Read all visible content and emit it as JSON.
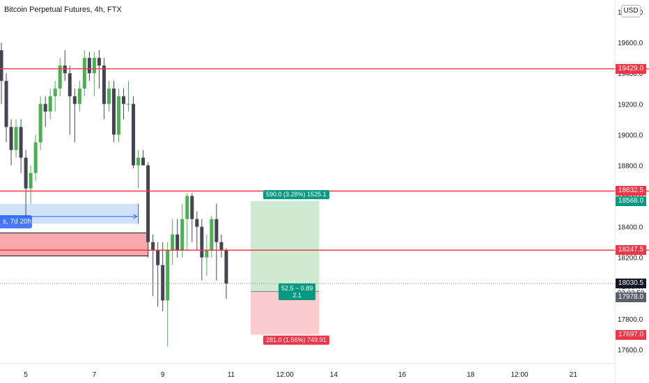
{
  "header": {
    "title": "Bitcoin Perpetual Futures, 4h, FTX"
  },
  "currency_badge": "USD",
  "chart_data": {
    "type": "candlestick",
    "title": "Bitcoin Perpetual Futures, 4h, FTX",
    "y_range": [
      17520,
      19870
    ],
    "y_ticks": [
      17600,
      17800,
      18000,
      18200,
      18400,
      18600,
      18800,
      19000,
      19200,
      19400,
      19600,
      19800
    ],
    "y_tick_labels": [
      "17600.0",
      "17800.0",
      "18000.0",
      "18200.0",
      "18400.0",
      "18600.0",
      "18800.0",
      "19000.0",
      "19200.0",
      "19400.0",
      "19600.0",
      "19800.0"
    ],
    "x_ticks": [
      {
        "label": "5",
        "bar": 5
      },
      {
        "label": "7",
        "bar": 19
      },
      {
        "label": "9",
        "bar": 33
      },
      {
        "label": "11",
        "bar": 47
      },
      {
        "label": "12:00",
        "bar": 58
      },
      {
        "label": "14",
        "bar": 68
      },
      {
        "label": "16",
        "bar": 82
      },
      {
        "label": "18",
        "bar": 96
      },
      {
        "label": "12:00",
        "bar": 106
      },
      {
        "label": "21",
        "bar": 117
      }
    ],
    "candles": [
      [
        19550,
        19600,
        19200,
        19350
      ],
      [
        19350,
        19400,
        18950,
        19050
      ],
      [
        19050,
        19100,
        18800,
        18900
      ],
      [
        18900,
        19100,
        18850,
        19050
      ],
      [
        19050,
        19100,
        18750,
        18850
      ],
      [
        18850,
        18900,
        18450,
        18650
      ],
      [
        18650,
        18800,
        18550,
        18750
      ],
      [
        18750,
        19000,
        18700,
        18950
      ],
      [
        18950,
        19250,
        18900,
        19200
      ],
      [
        19200,
        19250,
        19050,
        19150
      ],
      [
        19150,
        19300,
        19100,
        19250
      ],
      [
        19250,
        19350,
        19150,
        19300
      ],
      [
        19300,
        19500,
        19250,
        19450
      ],
      [
        19450,
        19550,
        19350,
        19400
      ],
      [
        19400,
        19450,
        19000,
        19250
      ],
      [
        19250,
        19300,
        18950,
        19200
      ],
      [
        19200,
        19350,
        19150,
        19300
      ],
      [
        19300,
        19550,
        19250,
        19500
      ],
      [
        19500,
        19540,
        19350,
        19400
      ],
      [
        19400,
        19540,
        19250,
        19500
      ],
      [
        19500,
        19550,
        19300,
        19450
      ],
      [
        19450,
        19500,
        19100,
        19200
      ],
      [
        19200,
        19350,
        19150,
        19300
      ],
      [
        19300,
        19350,
        18950,
        19000
      ],
      [
        19000,
        19300,
        18950,
        19250
      ],
      [
        19250,
        19300,
        19100,
        19200
      ],
      [
        19200,
        19350,
        19150,
        19200
      ],
      [
        19200,
        19250,
        18780,
        18800
      ],
      [
        18800,
        18900,
        18650,
        18850
      ],
      [
        18850,
        18900,
        18800,
        18800
      ],
      [
        18800,
        18820,
        18200,
        18300
      ],
      [
        18300,
        18350,
        17950,
        18250
      ],
      [
        18250,
        18300,
        17880,
        18150
      ],
      [
        18150,
        18300,
        17850,
        17920
      ],
      [
        17920,
        18300,
        17620,
        18250
      ],
      [
        18250,
        18450,
        18150,
        18350
      ],
      [
        18350,
        18450,
        18200,
        18250
      ],
      [
        18250,
        18550,
        18200,
        18450
      ],
      [
        18450,
        18620,
        18250,
        18600
      ],
      [
        18600,
        18620,
        18300,
        18450
      ],
      [
        18450,
        18500,
        18250,
        18400
      ],
      [
        18400,
        18450,
        18050,
        18200
      ],
      [
        18200,
        18350,
        18080,
        18250
      ],
      [
        18250,
        18470,
        18200,
        18450
      ],
      [
        18450,
        18550,
        18050,
        18300
      ],
      [
        18300,
        18350,
        18200,
        18250
      ],
      [
        18250,
        18260,
        17930,
        18030
      ]
    ],
    "horizontal_lines": [
      {
        "price": 19429.0,
        "label": "19429.0"
      },
      {
        "price": 18632.5,
        "label": "18632.5"
      },
      {
        "price": 18247.5,
        "label": "18247.5"
      }
    ],
    "last_price": {
      "value": 18030.5,
      "label": "18030.5",
      "countdown": "03:02:58"
    },
    "position": {
      "entry": 17978.0,
      "entry_label": "17978.0",
      "target": 18568.0,
      "target_label": "18568.0",
      "stop": 17697.0,
      "stop_label": "17697.0",
      "start_bar": 51,
      "end_bar": 65,
      "target_text": "590.0 (3.28%) 1525.1",
      "stop_text": "281.0 (1.56%) 749.91",
      "mid_text_1": "52.5 ~ 0.89",
      "mid_text_2": "2.1"
    },
    "date_range_box": {
      "price_top": 18550,
      "price_bottom": 18420,
      "end_bar": 28
    },
    "red_box": {
      "price_top": 18360,
      "price_bottom": 18210,
      "end_bar": 30,
      "label": "s, 7d 20h"
    },
    "colors": {
      "up": "#4caf50",
      "down": "#434651",
      "hline": "#f23645",
      "target": "#089981",
      "stop": "#f23645",
      "target_fill": "#cdebd0",
      "stop_fill": "#fccbcd",
      "range_fill": "#cfe2f7",
      "range_line": "#2962ff",
      "red_box_fill": "#f7a8a8",
      "tag_dark": "#131722",
      "tag_grey": "#5d606b"
    }
  }
}
